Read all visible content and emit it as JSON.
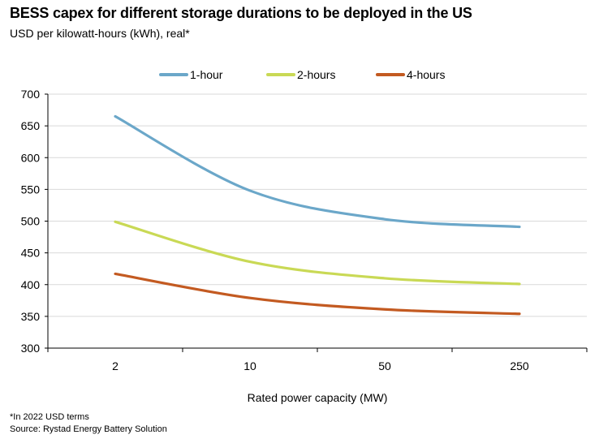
{
  "header": {
    "title": "BESS capex for different storage durations to be deployed in the US",
    "subtitle": "USD per kilowatt-hours (kWh), real*"
  },
  "footer": {
    "note": "*In 2022 USD terms",
    "source": "Source: Rystad Energy Battery Solution"
  },
  "chart_data": {
    "type": "line",
    "title": "BESS capex for different storage durations to be deployed in the US",
    "subtitle": "USD per kilowatt-hours (kWh), real*",
    "xlabel": "Rated power capacity (MW)",
    "ylabel": "",
    "categories": [
      "2",
      "10",
      "50",
      "250"
    ],
    "ylim": [
      300,
      700
    ],
    "yticks": [
      300,
      350,
      400,
      450,
      500,
      550,
      600,
      650,
      700
    ],
    "grid": true,
    "legend_position": "top",
    "series": [
      {
        "name": "1-hour",
        "color": "#6BA7C9",
        "values": [
          665,
          548,
          503,
          491
        ]
      },
      {
        "name": "2-hours",
        "color": "#C9D955",
        "values": [
          499,
          436,
          410,
          401
        ]
      },
      {
        "name": "4-hours",
        "color": "#C35A21",
        "values": [
          417,
          379,
          361,
          354
        ]
      }
    ]
  }
}
